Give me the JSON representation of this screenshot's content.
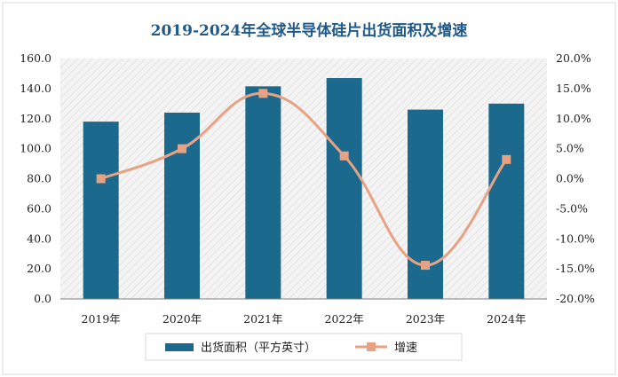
{
  "chart_data": {
    "type": "bar",
    "title": "2019-2024年全球半导体硅片出货面积及增速",
    "categories": [
      "2019年",
      "2020年",
      "2021年",
      "2022年",
      "2023年",
      "2024年"
    ],
    "series": [
      {
        "name": "出货面积（平方英寸）",
        "type": "bar",
        "axis": "left",
        "values": [
          118,
          124,
          141.5,
          147,
          126,
          130
        ]
      },
      {
        "name": "增速",
        "type": "line",
        "axis": "right",
        "values": [
          0.0,
          5.0,
          14.2,
          3.8,
          -14.4,
          3.2
        ]
      }
    ],
    "y_left": {
      "min": 0,
      "max": 160,
      "step": 20,
      "tick_labels": [
        "0.0",
        "20.0",
        "40.0",
        "60.0",
        "80.0",
        "100.0",
        "120.0",
        "140.0",
        "160.0"
      ]
    },
    "y_right": {
      "min": -20,
      "max": 20,
      "step": 5,
      "tick_labels": [
        "-20.0%",
        "-15.0%",
        "-10.0%",
        "-5.0%",
        "0.0%",
        "5.0%",
        "10.0%",
        "15.0%",
        "20.0%"
      ]
    },
    "legend_position": "bottom",
    "colors": {
      "bar": "#1b6a8d",
      "line": "#e8a283",
      "title": "#1f5a8a"
    }
  }
}
